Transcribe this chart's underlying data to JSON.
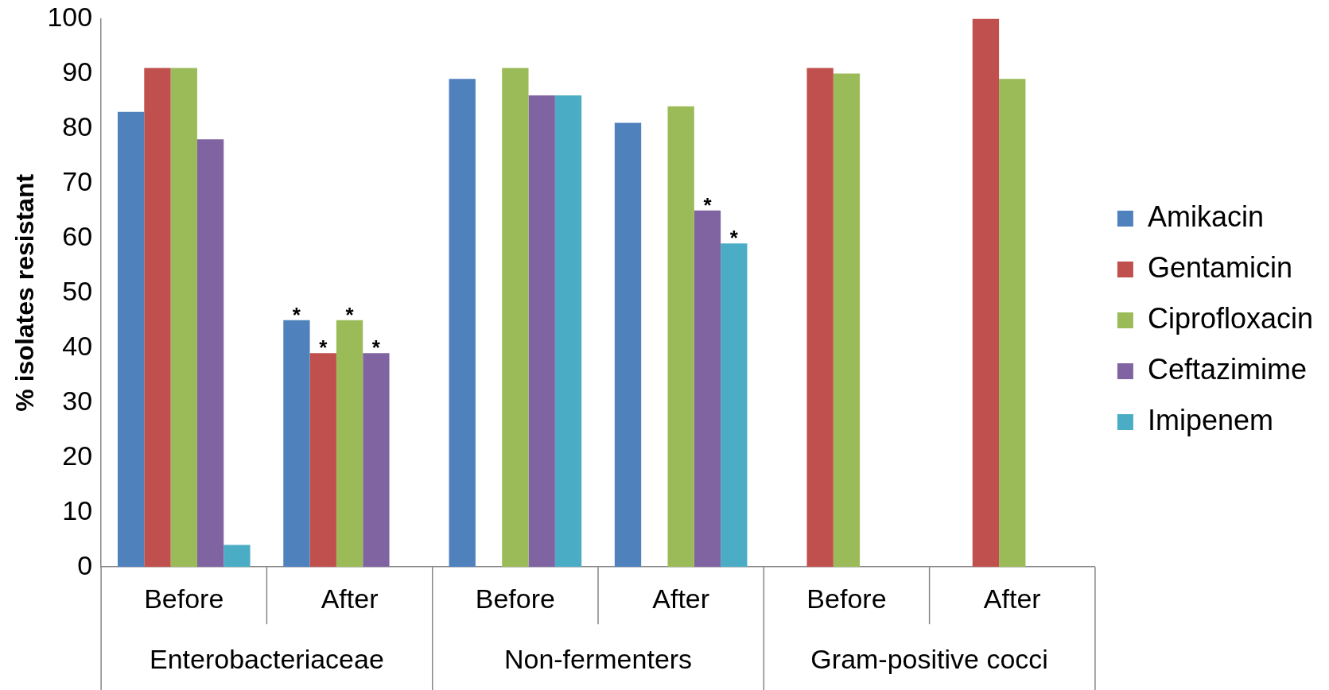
{
  "chart_data": {
    "type": "bar",
    "ylabel": "% isolates resistant",
    "categories": [
      "Before",
      "After",
      "Before",
      "After",
      "Before",
      "After"
    ],
    "annotations": [
      "Enterobacteriaceae",
      "Non-fermenters",
      "Gram-positive cocci"
    ],
    "series": [
      {
        "name": "Amikacin",
        "color": "#4f81bd",
        "values": [
          83,
          45,
          89,
          81,
          null,
          null
        ],
        "value_labels": [
          null,
          "*",
          null,
          null,
          null,
          null
        ]
      },
      {
        "name": "Gentamicin",
        "color": "#c0504d",
        "values": [
          91,
          39,
          null,
          null,
          91,
          100
        ],
        "value_labels": [
          null,
          "*",
          null,
          null,
          null,
          null
        ]
      },
      {
        "name": "Ciprofloxacin",
        "color": "#9bbb59",
        "values": [
          91,
          45,
          91,
          84,
          90,
          89
        ],
        "value_labels": [
          null,
          "*",
          null,
          null,
          null,
          null
        ]
      },
      {
        "name": "Ceftazimime",
        "color": "#8064a2",
        "values": [
          78,
          39,
          86,
          65,
          null,
          null
        ],
        "value_labels": [
          null,
          "*",
          null,
          "*",
          null,
          null
        ]
      },
      {
        "name": "Imipenem",
        "color": "#4bacc6",
        "values": [
          4,
          null,
          86,
          59,
          null,
          null
        ],
        "value_labels": [
          null,
          null,
          null,
          "*",
          null,
          null
        ]
      }
    ],
    "ylim": [
      0,
      100
    ],
    "yticks": [
      0,
      10,
      20,
      30,
      40,
      50,
      60,
      70,
      80,
      90,
      100
    ],
    "grid": false,
    "legend": "right"
  }
}
